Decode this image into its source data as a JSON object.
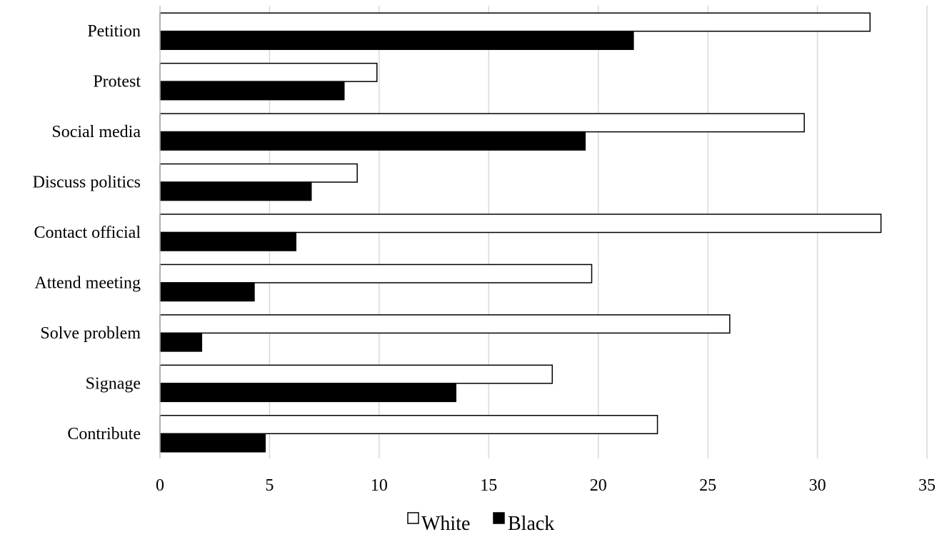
{
  "chart_data": {
    "type": "bar",
    "orientation": "horizontal",
    "title": "",
    "xlabel": "",
    "ylabel": "",
    "xlim": [
      0,
      35
    ],
    "x_ticks": [
      "0",
      "5",
      "10",
      "15",
      "20",
      "25",
      "30",
      "35"
    ],
    "categories": [
      "Petition",
      "Protest",
      "Social media",
      "Discuss politics",
      "Contact official",
      "Attend meeting",
      "Solve problem",
      "Signage",
      "Contribute"
    ],
    "series": [
      {
        "name": "White",
        "fill": "#ffffff",
        "stroke": "#000000",
        "values": [
          32.4,
          9.9,
          29.4,
          9.0,
          32.9,
          19.7,
          26.0,
          17.9,
          22.7
        ]
      },
      {
        "name": "Black",
        "fill": "#000000",
        "stroke": "#000000",
        "values": [
          21.6,
          8.4,
          19.4,
          6.9,
          6.2,
          4.3,
          1.9,
          13.5,
          4.8
        ]
      }
    ],
    "grid": "vertical",
    "legend_position": "bottom-center"
  }
}
